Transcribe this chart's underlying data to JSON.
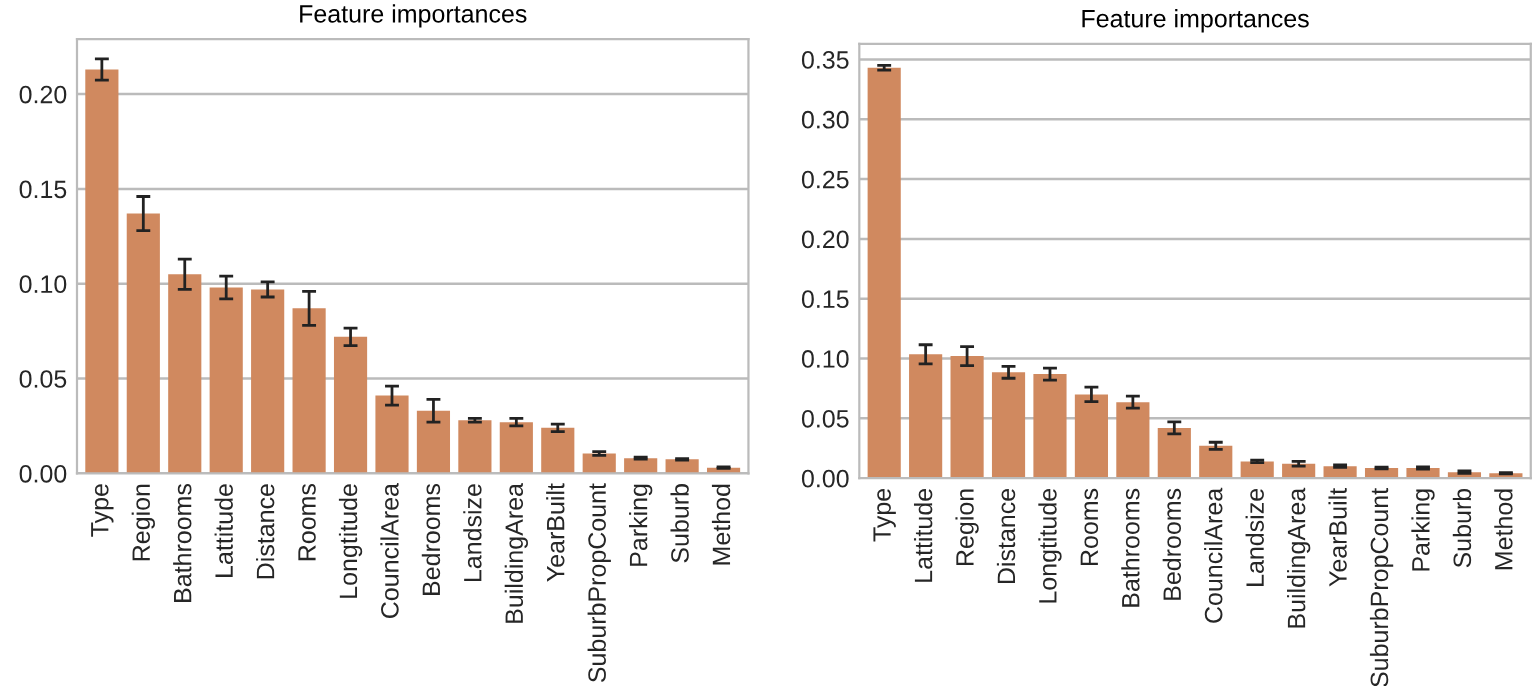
{
  "chart_data": [
    {
      "type": "bar",
      "title": "Feature importances",
      "categories": [
        "Type",
        "Region",
        "Bathrooms",
        "Lattitude",
        "Distance",
        "Rooms",
        "Longtitude",
        "CouncilArea",
        "Bedrooms",
        "Landsize",
        "BuildingArea",
        "YearBuilt",
        "SuburbPropCount",
        "Parking",
        "Suburb",
        "Method"
      ],
      "values": [
        0.213,
        0.137,
        0.105,
        0.098,
        0.097,
        0.087,
        0.072,
        0.041,
        0.033,
        0.028,
        0.027,
        0.024,
        0.0105,
        0.008,
        0.0074,
        0.003
      ],
      "errors": [
        0.0056,
        0.009,
        0.008,
        0.006,
        0.004,
        0.009,
        0.0046,
        0.005,
        0.006,
        0.001,
        0.002,
        0.002,
        0.001,
        0.0005,
        0.0004,
        0.0004
      ],
      "color": "#d0895f",
      "ylim": [
        0,
        0.229
      ],
      "yticks": [
        {
          "value": 0,
          "label": "0.00"
        },
        {
          "value": 0.05,
          "label": "0.05"
        },
        {
          "value": 0.1,
          "label": "0.10"
        },
        {
          "value": 0.15,
          "label": "0.15"
        },
        {
          "value": 0.2,
          "label": "0.20"
        }
      ],
      "grid": "y"
    },
    {
      "type": "bar",
      "title": "Feature importances",
      "categories": [
        "Type",
        "Lattitude",
        "Region",
        "Distance",
        "Longtitude",
        "Rooms",
        "Bathrooms",
        "Bedrooms",
        "CouncilArea",
        "Landsize",
        "BuildingArea",
        "YearBuilt",
        "SuburbPropCount",
        "Parking",
        "Suburb",
        "Method"
      ],
      "values": [
        0.343,
        0.1035,
        0.102,
        0.0885,
        0.087,
        0.07,
        0.0635,
        0.042,
        0.027,
        0.014,
        0.012,
        0.01,
        0.0085,
        0.0085,
        0.005,
        0.004
      ],
      "errors": [
        0.002,
        0.008,
        0.008,
        0.005,
        0.005,
        0.006,
        0.005,
        0.005,
        0.003,
        0.001,
        0.002,
        0.001,
        0.0007,
        0.001,
        0.001,
        0.0005
      ],
      "color": "#d0895f",
      "ylim": [
        0,
        0.363
      ],
      "yticks": [
        {
          "value": 0,
          "label": "0.00"
        },
        {
          "value": 0.05,
          "label": "0.05"
        },
        {
          "value": 0.1,
          "label": "0.10"
        },
        {
          "value": 0.15,
          "label": "0.15"
        },
        {
          "value": 0.2,
          "label": "0.20"
        },
        {
          "value": 0.25,
          "label": "0.25"
        },
        {
          "value": 0.3,
          "label": "0.30"
        },
        {
          "value": 0.35,
          "label": "0.35"
        }
      ],
      "grid": "y"
    }
  ]
}
